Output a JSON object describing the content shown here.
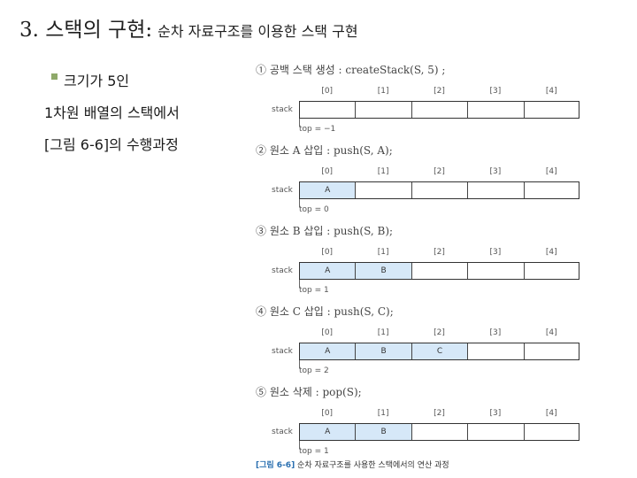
{
  "title": {
    "main": "3. 스택의 구현:",
    "sub": "순차 자료구조를 이용한 스택 구현"
  },
  "left": {
    "line1": "크기가 5인",
    "line2": "1차원 배열의 스택에서",
    "line3": "[그림 6-6]의 수행과정"
  },
  "figure": {
    "stack_label": "stack",
    "indices": [
      "[0]",
      "[1]",
      "[2]",
      "[3]",
      "[4]"
    ],
    "steps": [
      {
        "title": "① 공백 스택 생성 : createStack(S, 5) ;",
        "cells": [
          "",
          "",
          "",
          "",
          ""
        ],
        "top": "top = −1"
      },
      {
        "title": "② 원소 A 삽입 : push(S, A);",
        "cells": [
          "A",
          "",
          "",
          "",
          ""
        ],
        "top": "top = 0"
      },
      {
        "title": "③ 원소 B 삽입 : push(S, B);",
        "cells": [
          "A",
          "B",
          "",
          "",
          ""
        ],
        "top": "top = 1"
      },
      {
        "title": "④ 원소 C 삽입 : push(S, C);",
        "cells": [
          "A",
          "B",
          "C",
          "",
          ""
        ],
        "top": "top = 2"
      },
      {
        "title": "⑤ 원소 삭제 : pop(S);",
        "cells": [
          "A",
          "B",
          "",
          "",
          ""
        ],
        "top": "top = 1"
      }
    ],
    "caption_tag": "[그림 6-6]",
    "caption_text": "순차 자료구조를 사용한 스택에서의 연산 과정"
  },
  "colors": {
    "filled_cell": "#d6e8f8",
    "bullet": "#8fa96a",
    "caption_tag": "#2a6fb0"
  }
}
